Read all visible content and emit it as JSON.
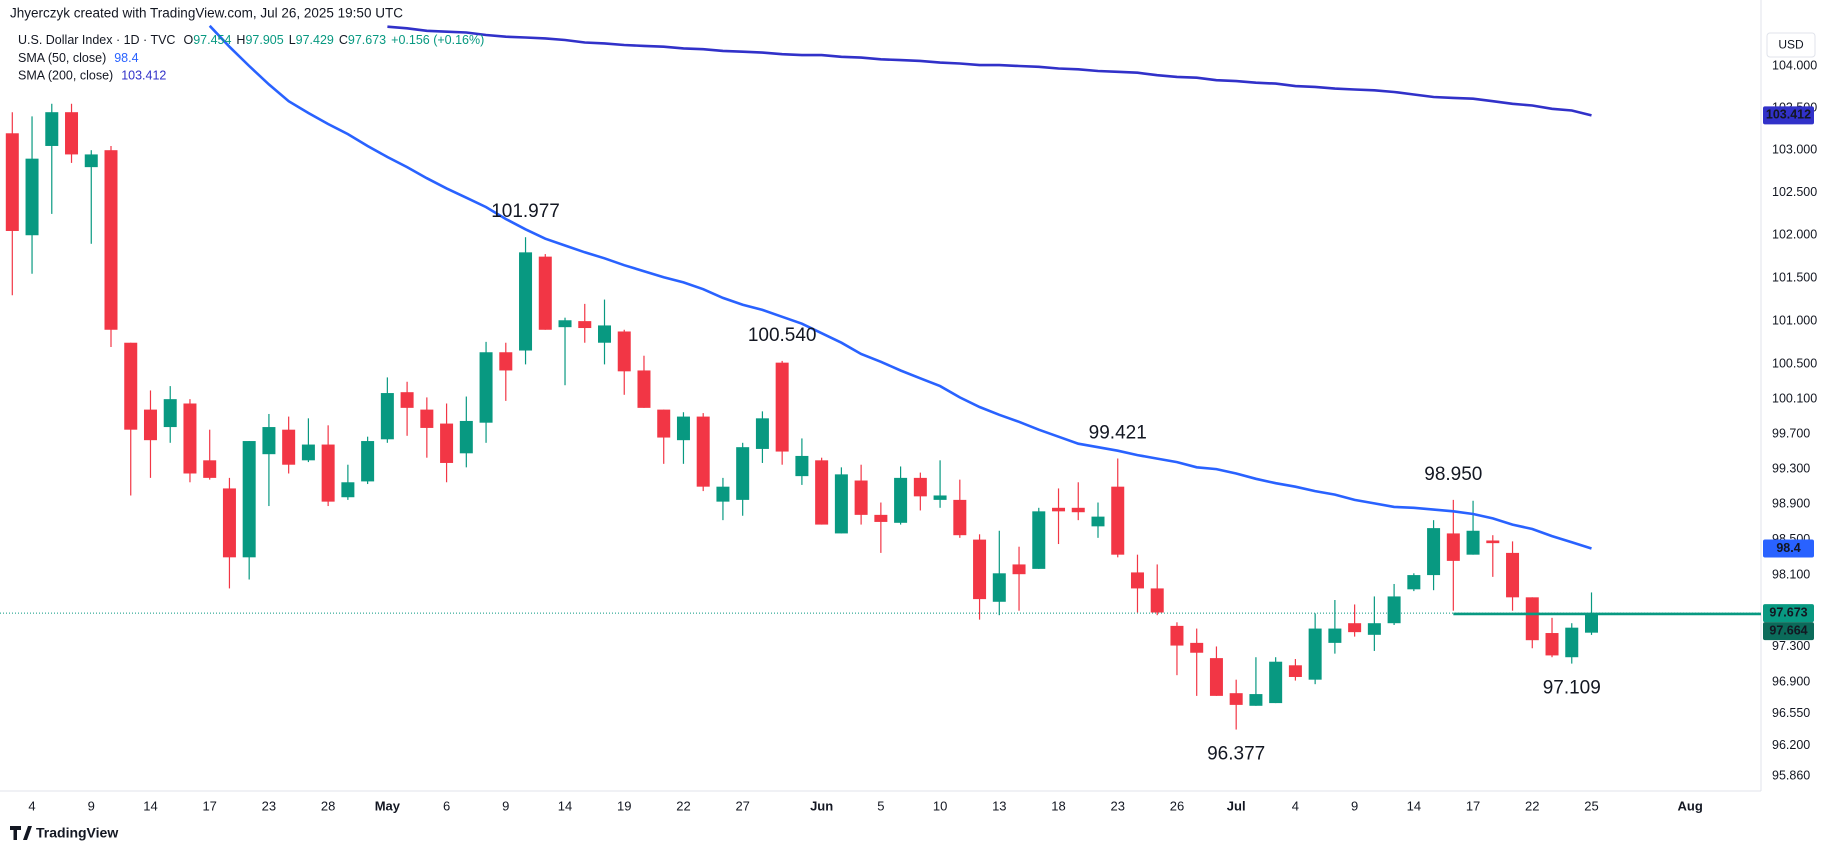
{
  "header": {
    "title": "Jhyerczyk created with TradingView.com, Jul 26, 2025 19:50 UTC"
  },
  "footer": {
    "brand": "TradingView"
  },
  "chart_data": {
    "type": "candlestick",
    "currency": "USD",
    "log_scale": true,
    "grid": false,
    "up_color": "#089981",
    "down_color": "#f23645",
    "legend": {
      "symbol": "U.S. Dollar Index · 1D · TVC",
      "fields": [
        {
          "key": "O",
          "value": "97.454"
        },
        {
          "key": "H",
          "value": "97.905"
        },
        {
          "key": "L",
          "value": "97.429"
        },
        {
          "key": "C",
          "value": "97.673"
        }
      ],
      "change": "+0.156 (+0.16%)"
    },
    "categories": [
      null,
      "4",
      null,
      null,
      "9",
      null,
      null,
      "14",
      null,
      null,
      "17",
      null,
      null,
      "23",
      null,
      null,
      "28",
      null,
      null,
      "May",
      null,
      null,
      "6",
      null,
      null,
      "9",
      null,
      null,
      "14",
      null,
      null,
      "19",
      null,
      null,
      "22",
      null,
      null,
      "27",
      null,
      null,
      null,
      "Jun",
      null,
      null,
      "5",
      null,
      null,
      "10",
      null,
      null,
      "13",
      null,
      null,
      "18",
      null,
      null,
      "23",
      null,
      null,
      "26",
      null,
      null,
      "Jul",
      null,
      null,
      "4",
      null,
      null,
      "9",
      null,
      null,
      "14",
      null,
      null,
      "17",
      null,
      null,
      "22",
      null,
      null,
      "25",
      null,
      null,
      null,
      null,
      "Aug",
      null,
      null,
      null
    ],
    "open": [
      103.2,
      102.0,
      103.05,
      103.45,
      102.8,
      103.0,
      100.75,
      99.98,
      99.78,
      100.05,
      99.4,
      99.08,
      98.3,
      99.47,
      99.75,
      99.4,
      99.58,
      98.98,
      99.16,
      99.64,
      100.18,
      99.98,
      99.82,
      99.48,
      99.83,
      100.64,
      100.66,
      101.75,
      100.93,
      101.0,
      100.75,
      100.88,
      100.43,
      99.98,
      99.63,
      99.9,
      98.93,
      98.95,
      99.53,
      100.52,
      99.22,
      99.4,
      98.57,
      99.17,
      98.78,
      98.69,
      99.2,
      98.95,
      98.95,
      98.5,
      97.8,
      98.22,
      98.17,
      98.86,
      98.86,
      98.65,
      99.1,
      98.13,
      97.95,
      97.53,
      97.34,
      97.17,
      96.78,
      96.64,
      96.67,
      97.09,
      96.93,
      97.34,
      97.56,
      97.43,
      97.56,
      97.94,
      98.1,
      98.57,
      98.33,
      98.49,
      98.35,
      97.85,
      97.45,
      97.18,
      97.454,
      null,
      null,
      null,
      null,
      null,
      null,
      null,
      null
    ],
    "high": [
      103.45,
      103.4,
      103.55,
      103.55,
      103.0,
      103.05,
      100.75,
      100.2,
      100.25,
      100.1,
      99.75,
      99.2,
      99.62,
      99.93,
      99.9,
      99.88,
      99.8,
      99.35,
      99.67,
      100.35,
      100.3,
      100.12,
      100.05,
      100.13,
      100.76,
      100.75,
      101.977,
      101.78,
      101.04,
      101.2,
      101.25,
      100.9,
      100.6,
      99.98,
      99.95,
      99.94,
      99.2,
      99.6,
      99.96,
      100.54,
      99.65,
      99.43,
      99.32,
      99.35,
      98.92,
      99.33,
      99.26,
      99.4,
      99.18,
      98.56,
      98.6,
      98.42,
      98.86,
      99.08,
      99.15,
      98.92,
      99.421,
      98.33,
      98.22,
      97.57,
      97.5,
      97.3,
      96.93,
      97.18,
      97.18,
      97.16,
      97.67,
      97.82,
      97.77,
      97.86,
      98.0,
      98.12,
      98.72,
      98.95,
      98.94,
      98.55,
      98.48,
      97.85,
      97.62,
      97.56,
      97.905,
      null,
      null,
      null,
      null,
      null,
      null,
      null,
      null
    ],
    "low": [
      101.3,
      101.55,
      102.25,
      102.85,
      101.9,
      100.7,
      99.0,
      99.2,
      99.6,
      99.15,
      99.18,
      97.95,
      98.05,
      98.88,
      99.25,
      99.38,
      98.88,
      98.95,
      99.13,
      99.6,
      99.68,
      99.43,
      99.15,
      99.32,
      99.6,
      100.08,
      100.5,
      100.9,
      100.26,
      100.75,
      100.5,
      100.15,
      100.0,
      99.36,
      99.36,
      99.05,
      98.72,
      98.77,
      99.37,
      99.35,
      99.12,
      98.67,
      98.57,
      98.67,
      98.35,
      98.67,
      98.83,
      98.86,
      98.52,
      97.6,
      97.65,
      97.7,
      98.17,
      98.45,
      98.72,
      98.52,
      98.3,
      97.68,
      97.65,
      96.98,
      96.75,
      96.75,
      96.377,
      96.64,
      96.67,
      96.92,
      96.88,
      97.22,
      97.41,
      97.25,
      97.54,
      97.92,
      97.93,
      97.7,
      98.33,
      98.08,
      97.7,
      97.28,
      97.18,
      97.109,
      97.429,
      null,
      null,
      null,
      null,
      null,
      null,
      null,
      null
    ],
    "close": [
      102.05,
      102.9,
      103.45,
      102.95,
      102.95,
      100.9,
      99.75,
      99.63,
      100.1,
      99.25,
      99.2,
      98.3,
      99.62,
      99.78,
      99.35,
      99.58,
      98.93,
      99.15,
      99.62,
      100.17,
      100.0,
      99.77,
      99.37,
      99.85,
      100.64,
      100.43,
      101.8,
      100.9,
      101.01,
      100.92,
      100.95,
      100.42,
      100.0,
      99.66,
      99.9,
      99.1,
      99.1,
      99.55,
      99.88,
      99.5,
      99.45,
      98.67,
      99.24,
      98.78,
      98.7,
      99.2,
      98.99,
      99.0,
      98.55,
      97.83,
      98.12,
      98.11,
      98.82,
      98.82,
      98.81,
      98.76,
      98.33,
      97.95,
      97.68,
      97.31,
      97.23,
      96.75,
      96.65,
      96.77,
      97.13,
      96.96,
      97.5,
      97.5,
      97.46,
      97.56,
      97.86,
      98.1,
      98.63,
      98.26,
      98.6,
      98.46,
      97.85,
      97.37,
      97.2,
      97.51,
      97.673,
      null,
      null,
      null,
      null,
      null,
      null,
      null,
      null
    ],
    "sma": [
      {
        "name": "SMA (50, close)",
        "color": "#2962ff",
        "value_label": "98.4",
        "values": [
          null,
          null,
          null,
          null,
          null,
          null,
          null,
          null,
          null,
          null,
          104.48,
          104.23,
          104.0,
          103.78,
          103.58,
          103.44,
          103.31,
          103.19,
          103.05,
          102.92,
          102.8,
          102.67,
          102.55,
          102.44,
          102.33,
          102.19,
          102.07,
          101.96,
          101.88,
          101.8,
          101.73,
          101.65,
          101.58,
          101.51,
          101.45,
          101.37,
          101.27,
          101.19,
          101.13,
          101.05,
          100.97,
          100.86,
          100.75,
          100.62,
          100.53,
          100.43,
          100.34,
          100.25,
          100.12,
          100.01,
          99.92,
          99.84,
          99.75,
          99.67,
          99.59,
          99.55,
          99.51,
          99.46,
          99.42,
          99.38,
          99.32,
          99.3,
          99.25,
          99.19,
          99.14,
          99.1,
          99.05,
          99.01,
          98.95,
          98.91,
          98.87,
          98.86,
          98.84,
          98.82,
          98.79,
          98.74,
          98.67,
          98.62,
          98.54,
          98.47,
          98.4,
          null,
          null,
          null,
          null,
          null,
          null,
          null,
          null
        ]
      },
      {
        "name": "SMA (200, close)",
        "color": "#3131c9",
        "value_label": "103.412",
        "values": [
          null,
          null,
          null,
          null,
          null,
          null,
          null,
          null,
          null,
          null,
          null,
          null,
          null,
          null,
          null,
          null,
          null,
          null,
          null,
          104.47,
          104.45,
          104.42,
          104.41,
          104.4,
          104.37,
          104.35,
          104.34,
          104.33,
          104.31,
          104.28,
          104.27,
          104.25,
          104.24,
          104.23,
          104.21,
          104.2,
          104.18,
          104.17,
          104.16,
          104.14,
          104.13,
          104.13,
          104.11,
          104.1,
          104.08,
          104.07,
          104.06,
          104.04,
          104.03,
          104.01,
          104.01,
          104.0,
          103.99,
          103.97,
          103.96,
          103.94,
          103.93,
          103.92,
          103.89,
          103.87,
          103.86,
          103.83,
          103.82,
          103.8,
          103.79,
          103.76,
          103.75,
          103.73,
          103.72,
          103.71,
          103.69,
          103.66,
          103.63,
          103.62,
          103.61,
          103.58,
          103.55,
          103.53,
          103.49,
          103.47,
          103.412,
          null,
          null,
          null,
          null,
          null,
          null,
          null,
          null
        ]
      }
    ],
    "last_price": {
      "value": 97.673,
      "label": "97.673"
    },
    "horizontal_line": {
      "value": 97.664,
      "label": "97.664",
      "color": "#089981"
    },
    "annotations": [
      {
        "value": 101.977,
        "label": "101.977"
      },
      {
        "value": 100.54,
        "label": "100.540"
      },
      {
        "value": 99.421,
        "label": "99.421"
      },
      {
        "value": 98.95,
        "label": "98.950"
      },
      {
        "value": 96.377,
        "label": "96.377"
      },
      {
        "value": 97.109,
        "label": "97.109"
      }
    ],
    "ylim": [
      95.7,
      104.79
    ],
    "yticks": [
      {
        "value": 104,
        "label": "104.000"
      },
      {
        "value": 103.5,
        "label": "103.500"
      },
      {
        "value": 103,
        "label": "103.000"
      },
      {
        "value": 102.5,
        "label": "102.500"
      },
      {
        "value": 102,
        "label": "102.000"
      },
      {
        "value": 101.5,
        "label": "101.500"
      },
      {
        "value": 101,
        "label": "101.000"
      },
      {
        "value": 100.5,
        "label": "100.500"
      },
      {
        "value": 100.1,
        "label": "100.100"
      },
      {
        "value": 99.7,
        "label": "99.700"
      },
      {
        "value": 99.3,
        "label": "99.300"
      },
      {
        "value": 98.9,
        "label": "98.900"
      },
      {
        "value": 98.5,
        "label": "98.500"
      },
      {
        "value": 98.1,
        "label": "98.100"
      },
      {
        "value": 97.3,
        "label": "97.300"
      },
      {
        "value": 96.9,
        "label": "96.900"
      },
      {
        "value": 96.55,
        "label": "96.550"
      },
      {
        "value": 96.2,
        "label": "96.200"
      },
      {
        "value": 95.86,
        "label": "95.860"
      }
    ]
  }
}
